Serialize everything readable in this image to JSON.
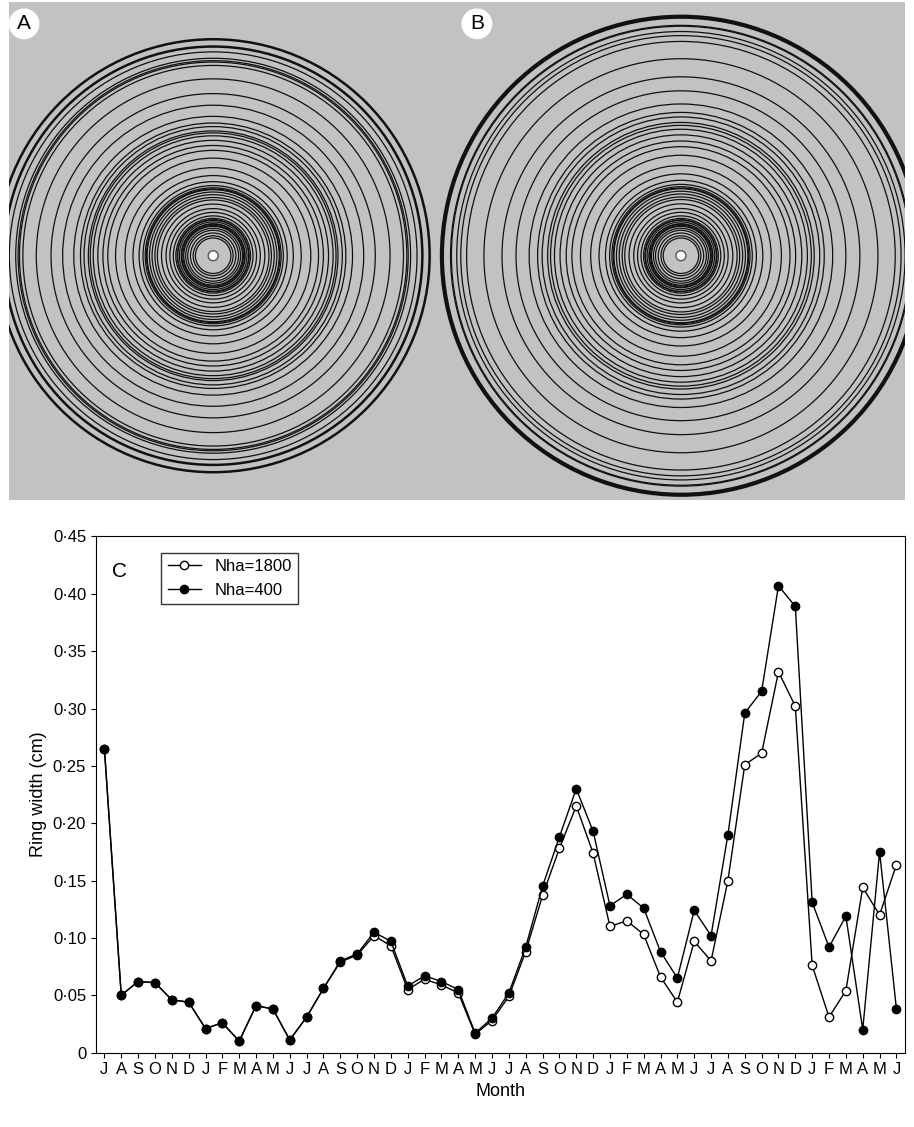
{
  "panels": [
    {
      "label": "A",
      "series": "Nha=1800"
    },
    {
      "label": "B",
      "series": "Nha=400"
    }
  ],
  "chart_data": {
    "type": "line",
    "annotations": [
      "C"
    ],
    "x_label": "Month",
    "y_label": "Ring width (cm)",
    "categories": [
      "J",
      "A",
      "S",
      "O",
      "N",
      "D",
      "J",
      "F",
      "M",
      "A",
      "M",
      "J",
      "J",
      "A",
      "S",
      "O",
      "N",
      "D",
      "J",
      "F",
      "M",
      "A",
      "M",
      "J",
      "J",
      "A",
      "S",
      "O",
      "N",
      "D",
      "J",
      "F",
      "M",
      "A",
      "M",
      "J",
      "J",
      "A",
      "S",
      "O",
      "N",
      "D",
      "J",
      "F",
      "M",
      "A",
      "M",
      "J"
    ],
    "series": [
      {
        "name": "Nha=1800",
        "color": "#000000",
        "marker": "open",
        "line_style": "solid",
        "values": [
          0.265,
          0.05,
          0.062,
          0.061,
          0.046,
          0.044,
          0.021,
          0.026,
          0.01,
          0.041,
          0.038,
          0.011,
          0.031,
          0.056,
          0.079,
          0.085,
          0.102,
          0.093,
          0.055,
          0.064,
          0.059,
          0.052,
          0.016,
          0.028,
          0.049,
          0.088,
          0.137,
          0.178,
          0.215,
          0.174,
          0.11,
          0.115,
          0.103,
          0.066,
          0.044,
          0.097,
          0.08,
          0.15,
          0.251,
          0.261,
          0.332,
          0.302,
          0.076,
          0.031,
          0.054,
          0.144,
          0.12,
          0.164
        ]
      },
      {
        "name": "Nha=400",
        "color": "#000000",
        "marker": "filled",
        "line_style": "solid",
        "values": [
          0.265,
          0.05,
          0.062,
          0.061,
          0.046,
          0.044,
          0.021,
          0.026,
          0.01,
          0.041,
          0.038,
          0.011,
          0.031,
          0.056,
          0.08,
          0.086,
          0.105,
          0.097,
          0.058,
          0.067,
          0.062,
          0.055,
          0.017,
          0.03,
          0.052,
          0.092,
          0.145,
          0.188,
          0.23,
          0.193,
          0.128,
          0.138,
          0.126,
          0.088,
          0.065,
          0.124,
          0.102,
          0.19,
          0.296,
          0.315,
          0.407,
          0.389,
          0.131,
          0.092,
          0.119,
          0.02,
          0.175,
          0.038
        ]
      }
    ],
    "ylim": [
      0,
      0.45
    ],
    "yticks": [
      0,
      {
        "value": 0.05,
        "label": "0·05"
      },
      {
        "value": 0.1,
        "label": "0·10"
      },
      {
        "value": 0.15,
        "label": "0·15"
      },
      {
        "value": 0.2,
        "label": "0·20"
      },
      {
        "value": 0.25,
        "label": "0·25"
      },
      {
        "value": 0.3,
        "label": "0·30"
      },
      {
        "value": 0.35,
        "label": "0·35"
      },
      {
        "value": 0.4,
        "label": "0·40"
      },
      {
        "value": 0.45,
        "label": "0·45"
      }
    ],
    "legend": "upper left",
    "grid": false
  }
}
